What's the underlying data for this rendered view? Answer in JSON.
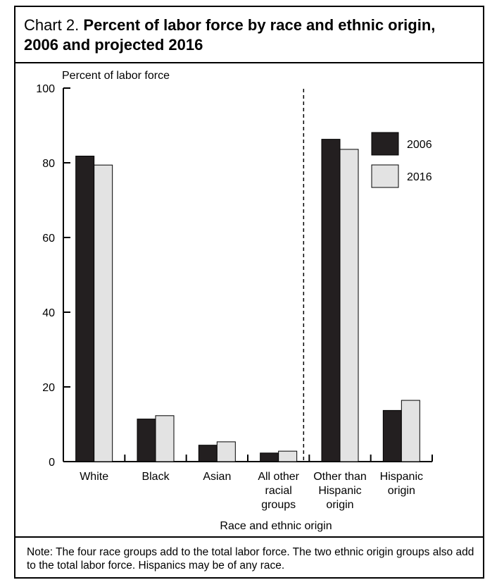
{
  "title": {
    "lead": "Chart 2.",
    "main": "Percent of labor force by race and ethnic origin, 2006 and projected 2016"
  },
  "note": "Note: The four race groups add to the total labor force. The two ethnic origin groups also add to the total labor force. Hispanics may be of any race.",
  "chart_data": {
    "type": "bar",
    "title": "Chart 2. Percent of labor force by race and ethnic origin, 2006 and projected 2016",
    "ylabel": "Percent of labor force",
    "xlabel": "Race and ethnic origin",
    "ylim": [
      0,
      100
    ],
    "yticks": [
      "0",
      "20",
      "40",
      "60",
      "80",
      "100"
    ],
    "categories": [
      [
        "White"
      ],
      [
        "Black"
      ],
      [
        "Asian"
      ],
      [
        "All other",
        "racial",
        "groups"
      ],
      [
        "Other than",
        "Hispanic",
        "origin"
      ],
      [
        "Hispanic",
        "origin"
      ]
    ],
    "series": [
      {
        "name": "2006",
        "color": "#231f20",
        "values": [
          81.8,
          11.4,
          4.4,
          2.3,
          86.3,
          13.7
        ]
      },
      {
        "name": "2016",
        "color": "#e3e3e3",
        "values": [
          79.4,
          12.3,
          5.3,
          2.8,
          83.6,
          16.4
        ]
      }
    ],
    "legend_position": "top-right",
    "divider": "dashed line between race groups and ethnic origin groups",
    "grid": false
  }
}
